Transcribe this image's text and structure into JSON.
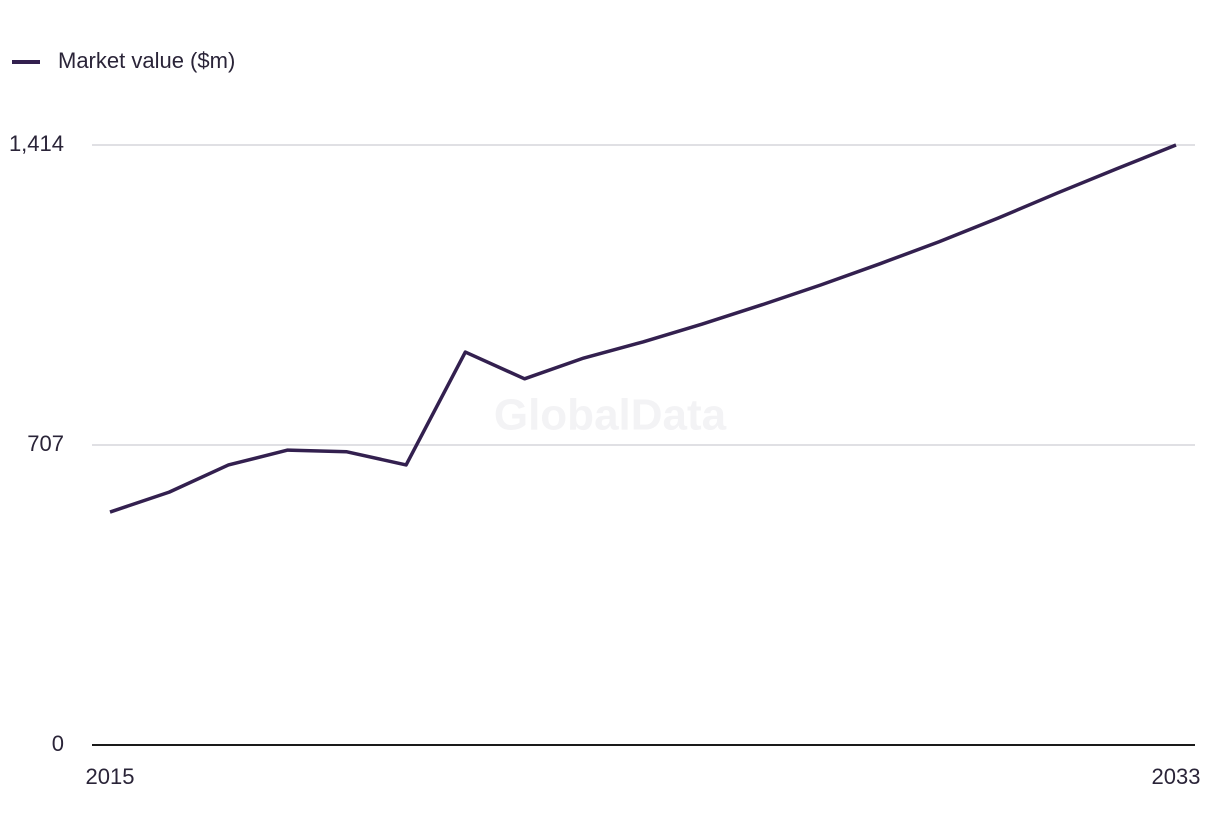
{
  "chart_data": {
    "type": "line",
    "watermark": "GlobalData",
    "x": [
      2015,
      2016,
      2017,
      2018,
      2019,
      2020,
      2021,
      2022,
      2023,
      2024,
      2025,
      2026,
      2027,
      2028,
      2029,
      2030,
      2031,
      2032,
      2033
    ],
    "series": [
      {
        "name": "Market value ($m)",
        "color": "#33204f",
        "values": [
          549,
          596,
          660,
          695,
          691,
          660,
          926,
          863,
          912,
          950,
          992,
          1037,
          1084,
          1134,
          1186,
          1242,
          1301,
          1358,
          1414
        ]
      }
    ],
    "xlim": [
      2015,
      2033
    ],
    "xticks": [
      2015,
      2033
    ],
    "ylim": [
      0,
      1414
    ],
    "yticks": [
      0,
      707,
      {
        "value": 1414,
        "label": "1,414"
      }
    ],
    "grid": true,
    "legend": "top-left"
  }
}
